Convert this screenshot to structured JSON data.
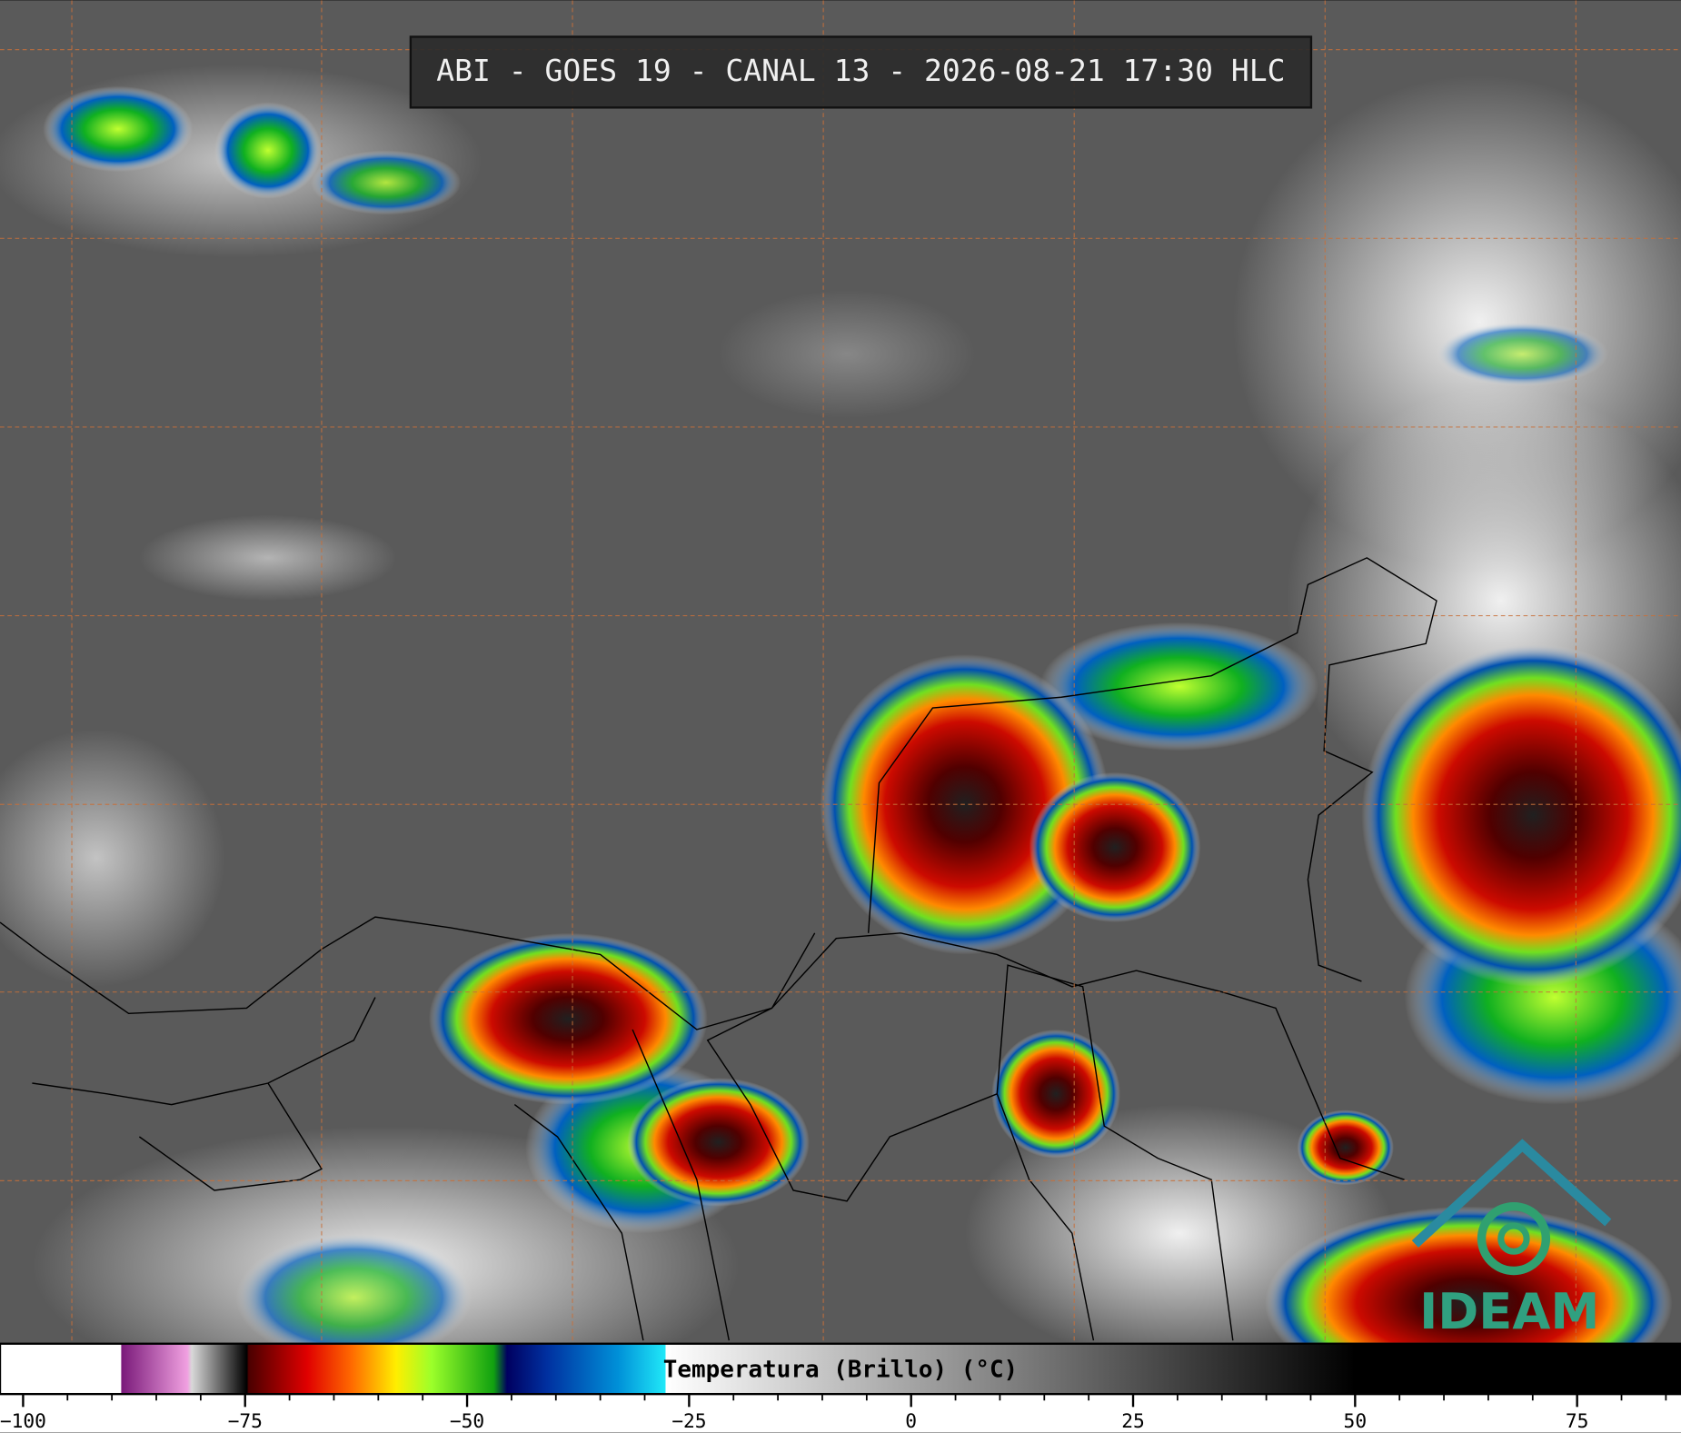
{
  "title": "ABI - GOES 19 - CANAL 13 - 2026-08-21 17:30 HLC",
  "logo": "IDEAM",
  "colorbar": {
    "label": "Temperatura (Brillo) (°C)",
    "lim": [
      -102.6,
      86.7
    ],
    "ticks": [
      {
        "value": -100,
        "label": "−100"
      },
      {
        "value": -75,
        "label": "−75"
      },
      {
        "value": -50,
        "label": "−50"
      },
      {
        "value": -25,
        "label": "−25"
      },
      0,
      25,
      50,
      75
    ],
    "minor_step": 5,
    "stops": [
      [
        -102.6,
        "#ffffff"
      ],
      [
        -89,
        "#ffffff"
      ],
      [
        -88.9,
        "#7a1a7a"
      ],
      [
        -81.5,
        "#f0a0e0"
      ],
      [
        -81,
        "#d8d8d8"
      ],
      [
        -74.8,
        "#000000"
      ],
      [
        -74.6,
        "#4a0000"
      ],
      [
        -68,
        "#e00000"
      ],
      [
        -63,
        "#ff6a00"
      ],
      [
        -58,
        "#ffee00"
      ],
      [
        -54,
        "#9cff2a"
      ],
      [
        -47,
        "#10a010"
      ],
      [
        -45.5,
        "#000060"
      ],
      [
        -41,
        "#0030a0"
      ],
      [
        -33,
        "#0090d8"
      ],
      [
        -27.7,
        "#20e8f8"
      ],
      [
        -27.6,
        "#ffffff"
      ],
      [
        50,
        "#000000"
      ],
      [
        86.7,
        "#000000"
      ]
    ]
  }
}
